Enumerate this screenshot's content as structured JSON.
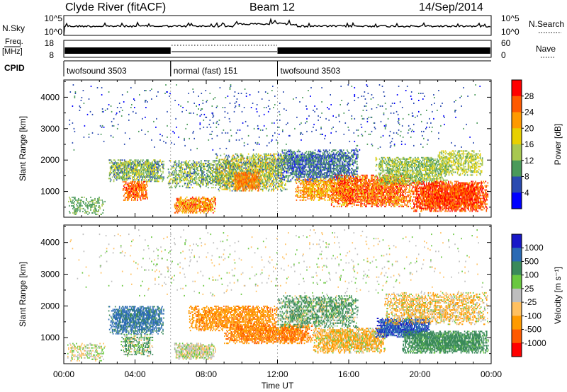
{
  "header": {
    "station": "Clyde River (fitACF)",
    "beam": "Beam 12",
    "date": "14/Sep/2014"
  },
  "status_panels": {
    "nsky_label": "N.Sky",
    "nsky_ticks": [
      "10^5",
      "10^0"
    ],
    "nsearch_label": "N.Search",
    "nsearch_ticks": [
      "10^5",
      "10^0"
    ],
    "freq_label_line1": "Freq.",
    "freq_label_line2": "[MHz]",
    "freq_ticks": [
      "18",
      "8"
    ],
    "nave_label": "Nave",
    "nave_ticks": [
      "60",
      "0"
    ],
    "cpid_label": "CPID",
    "cpid_segments": [
      {
        "name": "twofsound 3503",
        "start": 0,
        "end": 6
      },
      {
        "name": "normal (fast) 151",
        "start": 6,
        "end": 12
      },
      {
        "name": "twofsound 3503",
        "start": 12,
        "end": 24
      }
    ]
  },
  "chart_data": [
    {
      "type": "heatmap",
      "title": "",
      "xlabel": "Time UT",
      "ylabel": "Slant Range [km]",
      "x_ticks": [
        "00:00",
        "04:00",
        "08:00",
        "12:00",
        "16:00",
        "20:00",
        "00:00"
      ],
      "xlim": [
        0,
        24
      ],
      "y_ticks": [
        "4000",
        "3000",
        "2000",
        "1000"
      ],
      "y_tick_values": [
        4000,
        3000,
        2000,
        1000
      ],
      "ylim": [
        180,
        4550
      ],
      "colorbar": {
        "label": "Power [dB]",
        "ticks": [
          "28",
          "24",
          "20",
          "16",
          "12",
          "8",
          "4"
        ],
        "colors": [
          "#ff0000",
          "#ff5a00",
          "#ff9a00",
          "#e8d000",
          "#a8c850",
          "#4a9a5a",
          "#2a4ab0",
          "#0000ff"
        ]
      },
      "regions": [
        {
          "t0": 0.2,
          "t1": 2.3,
          "r0": 250,
          "r1": 800,
          "d": 0.35,
          "v": [
            8,
            14
          ]
        },
        {
          "t0": 2.5,
          "t1": 5.6,
          "r0": 1300,
          "r1": 2000,
          "d": 0.7,
          "v": [
            6,
            18
          ]
        },
        {
          "t0": 3.3,
          "t1": 4.7,
          "r0": 700,
          "r1": 1300,
          "d": 0.7,
          "v": [
            20,
            30
          ]
        },
        {
          "t0": 6.2,
          "t1": 8.5,
          "r0": 300,
          "r1": 800,
          "d": 0.75,
          "v": [
            16,
            30
          ]
        },
        {
          "t0": 5.8,
          "t1": 9.5,
          "r0": 1100,
          "r1": 2000,
          "d": 0.45,
          "v": [
            6,
            18
          ]
        },
        {
          "t0": 8.5,
          "t1": 12.5,
          "r0": 1000,
          "r1": 2200,
          "d": 0.6,
          "v": [
            6,
            22
          ]
        },
        {
          "t0": 9.5,
          "t1": 11.0,
          "r0": 1000,
          "r1": 1600,
          "d": 0.7,
          "v": [
            20,
            28
          ]
        },
        {
          "t0": 12.0,
          "t1": 16.5,
          "r0": 1300,
          "r1": 2300,
          "d": 0.65,
          "v": [
            3,
            12
          ]
        },
        {
          "t0": 13.0,
          "t1": 16.0,
          "r0": 700,
          "r1": 1400,
          "d": 0.6,
          "v": [
            16,
            28
          ]
        },
        {
          "t0": 15.0,
          "t1": 19.5,
          "r0": 500,
          "r1": 1500,
          "d": 0.75,
          "v": [
            18,
            32
          ]
        },
        {
          "t0": 17.5,
          "t1": 21.5,
          "r0": 1200,
          "r1": 2100,
          "d": 0.6,
          "v": [
            8,
            18
          ]
        },
        {
          "t0": 19.5,
          "t1": 23.8,
          "r0": 350,
          "r1": 1300,
          "d": 0.85,
          "v": [
            22,
            32
          ]
        },
        {
          "t0": 21.0,
          "t1": 23.5,
          "r0": 1500,
          "r1": 2300,
          "d": 0.5,
          "v": [
            10,
            20
          ]
        },
        {
          "t0": 0.3,
          "t1": 23.5,
          "r0": 2300,
          "r1": 4400,
          "d": 0.025,
          "v": [
            3,
            10
          ]
        }
      ]
    },
    {
      "type": "heatmap",
      "title": "",
      "xlabel": "Time UT",
      "ylabel": "Slant Range [km]",
      "x_ticks": [
        "00:00",
        "04:00",
        "08:00",
        "12:00",
        "16:00",
        "20:00",
        "00:00"
      ],
      "xlim": [
        0,
        24
      ],
      "y_ticks": [
        "4000",
        "3000",
        "2000",
        "1000"
      ],
      "y_tick_values": [
        4000,
        3000,
        2000,
        1000
      ],
      "ylim": [
        180,
        4550
      ],
      "colorbar": {
        "label": "Velocity [m s⁻¹]",
        "ticks": [
          "1000",
          "500",
          "100",
          "25",
          "-25",
          "-100",
          "-500",
          "-1000"
        ],
        "colors": [
          "#1818c8",
          "#2a6ab4",
          "#3a8a5a",
          "#6ac840",
          "#bebebe",
          "#ffc060",
          "#ff9a00",
          "#ff5a00",
          "#ff0000"
        ]
      },
      "regions": [
        {
          "t0": 0.2,
          "t1": 2.3,
          "r0": 250,
          "r1": 800,
          "d": 0.35,
          "v": [
            -100,
            100
          ]
        },
        {
          "t0": 2.5,
          "t1": 5.6,
          "r0": 1100,
          "r1": 2000,
          "d": 0.7,
          "v": [
            300,
            1000
          ]
        },
        {
          "t0": 3.2,
          "t1": 5.0,
          "r0": 400,
          "r1": 1100,
          "d": 0.45,
          "v": [
            -100,
            300
          ]
        },
        {
          "t0": 6.2,
          "t1": 8.5,
          "r0": 300,
          "r1": 800,
          "d": 0.75,
          "v": [
            -60,
            60
          ]
        },
        {
          "t0": 7.0,
          "t1": 12.0,
          "r0": 1200,
          "r1": 2000,
          "d": 0.6,
          "v": [
            -600,
            -100
          ]
        },
        {
          "t0": 9.0,
          "t1": 14.0,
          "r0": 800,
          "r1": 1400,
          "d": 0.7,
          "v": [
            -700,
            -200
          ]
        },
        {
          "t0": 12.0,
          "t1": 16.5,
          "r0": 1300,
          "r1": 2300,
          "d": 0.55,
          "v": [
            -100,
            500
          ]
        },
        {
          "t0": 14.0,
          "t1": 18.0,
          "r0": 500,
          "r1": 1300,
          "d": 0.7,
          "v": [
            -400,
            100
          ]
        },
        {
          "t0": 17.5,
          "t1": 20.5,
          "r0": 1000,
          "r1": 1600,
          "d": 0.85,
          "v": [
            600,
            1200
          ]
        },
        {
          "t0": 19.0,
          "t1": 23.8,
          "r0": 500,
          "r1": 1200,
          "d": 0.8,
          "v": [
            50,
            500
          ]
        },
        {
          "t0": 18.0,
          "t1": 23.8,
          "r0": 1400,
          "r1": 2400,
          "d": 0.5,
          "v": [
            -200,
            60
          ]
        },
        {
          "t0": 0.3,
          "t1": 23.5,
          "r0": 2300,
          "r1": 4400,
          "d": 0.025,
          "v": [
            -60,
            60
          ]
        }
      ]
    }
  ]
}
